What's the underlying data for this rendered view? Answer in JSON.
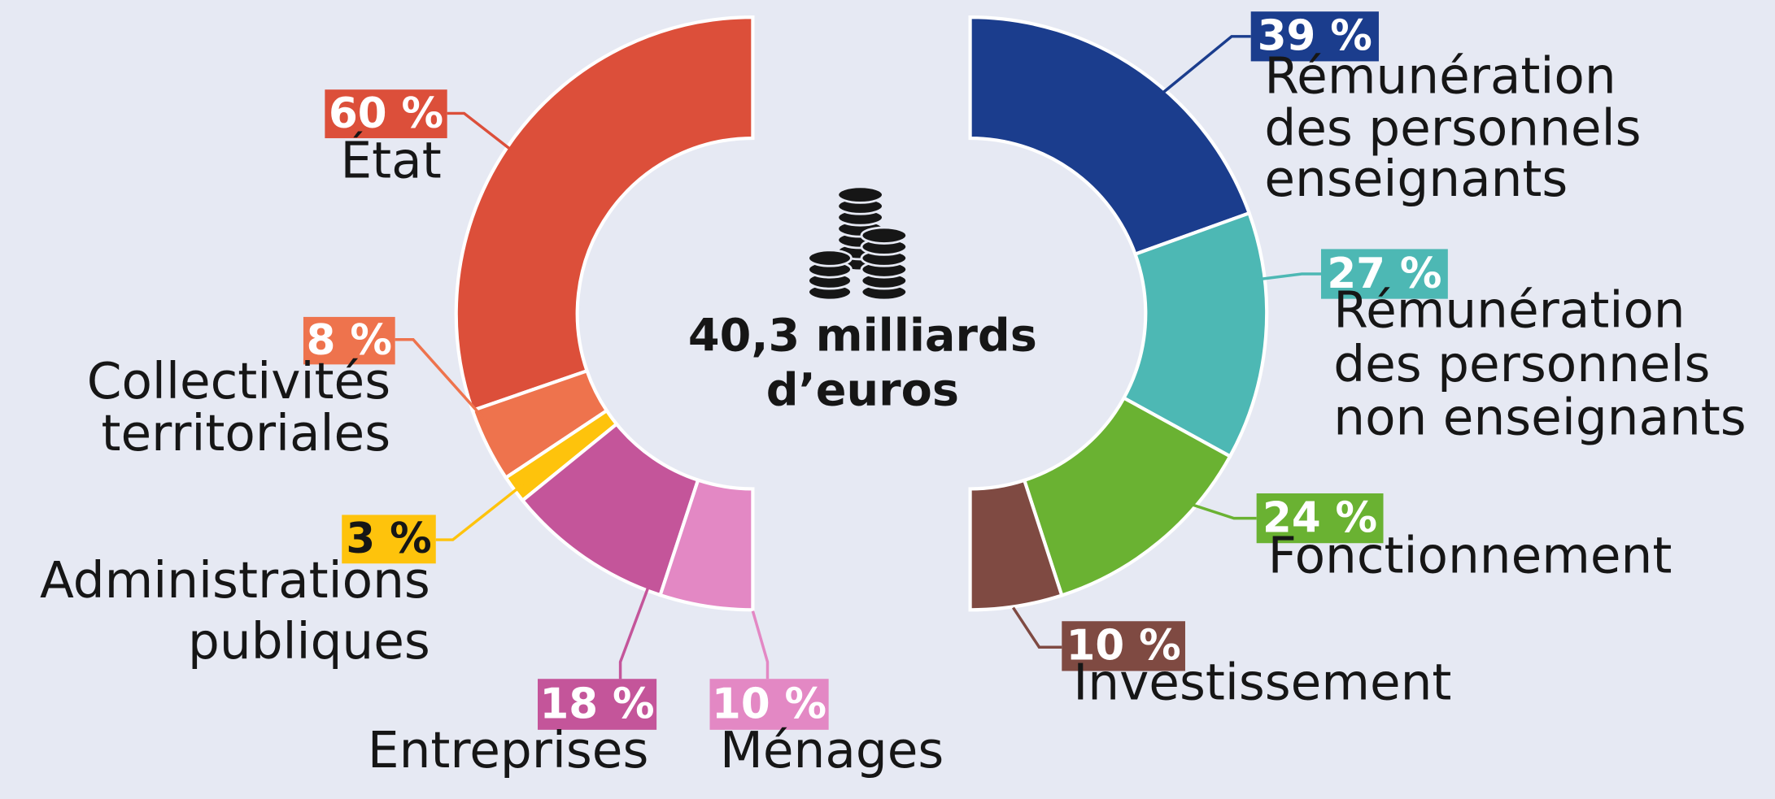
{
  "center_label": [
    "40,3 milliards",
    "d’euros"
  ],
  "chart_data": [
    {
      "type": "pie",
      "categories": [
        "État",
        "Collectivités territoriales",
        "Administrations publiques",
        "Entreprises",
        "Ménages"
      ],
      "values": [
        60,
        8,
        3,
        18,
        10
      ],
      "value_labels": [
        "60 %",
        "8 %",
        "3 %",
        "18 %",
        "10 %"
      ],
      "colors": [
        "#dc4f3a",
        "#ee734d",
        "#fec30c",
        "#c4559a",
        "#e388c4"
      ]
    },
    {
      "type": "pie",
      "categories": [
        "Rémunération des personnels enseignants",
        "Rémunération des personnels non enseignants",
        "Fonctionnement",
        "Investissement"
      ],
      "values": [
        39,
        27,
        24,
        10
      ],
      "value_labels": [
        "39 %",
        "27 %",
        "24 %",
        "10 %"
      ],
      "colors": [
        "#1b3d8d",
        "#4db8b4",
        "#6ab232",
        "#7f4a42"
      ]
    }
  ]
}
